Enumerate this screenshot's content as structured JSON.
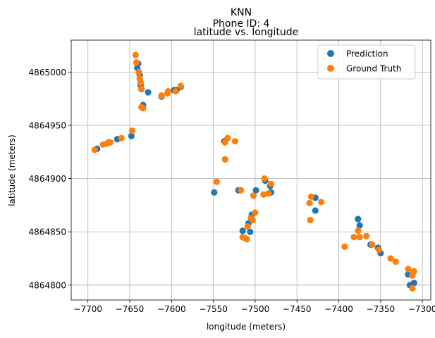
{
  "chart_data": {
    "type": "scatter",
    "suptitle_line1": "KNN",
    "suptitle_line2": "Phone ID: 4",
    "title": "latitude vs. longitude",
    "xlabel": "longitude (meters)",
    "ylabel": "latitude (meters)",
    "xlim": [
      -7720,
      -7290
    ],
    "ylim": [
      4864786,
      4865030
    ],
    "xticks": [
      -7700,
      -7650,
      -7600,
      -7550,
      -7500,
      -7450,
      -7400,
      -7350,
      -7300
    ],
    "xtick_labels": [
      "−7700",
      "−7650",
      "−7600",
      "−7550",
      "−7500",
      "−7450",
      "−7400",
      "−7350",
      "−7300"
    ],
    "yticks": [
      4864800,
      4864850,
      4864900,
      4864950,
      4865000
    ],
    "ytick_labels": [
      "4864800",
      "4864850",
      "4864900",
      "4864950",
      "4865000"
    ],
    "grid": true,
    "legend_position": "top-right",
    "series": [
      {
        "name": "Prediction",
        "color": "#1f77b4",
        "points": [
          [
            -7689,
            4864928
          ],
          [
            -7675,
            4864934
          ],
          [
            -7665,
            4864937
          ],
          [
            -7648,
            4864940
          ],
          [
            -7640,
            4865008
          ],
          [
            -7641,
            4865004
          ],
          [
            -7638,
            4864997
          ],
          [
            -7637,
            4864988
          ],
          [
            -7636,
            4864984
          ],
          [
            -7634,
            4864969
          ],
          [
            -7628,
            4864981
          ],
          [
            -7612,
            4864977
          ],
          [
            -7597,
            4864983
          ],
          [
            -7594,
            4864983
          ],
          [
            -7589,
            4864986
          ],
          [
            -7549,
            4864887
          ],
          [
            -7537,
            4864935
          ],
          [
            -7536,
            4864918
          ],
          [
            -7520,
            4864889
          ],
          [
            -7515,
            4864851
          ],
          [
            -7508,
            4864858
          ],
          [
            -7506,
            4864850
          ],
          [
            -7504,
            4864866
          ],
          [
            -7502,
            4864884
          ],
          [
            -7499,
            4864889
          ],
          [
            -7488,
            4864898
          ],
          [
            -7482,
            4864893
          ],
          [
            -7481,
            4864887
          ],
          [
            -7428,
            4864882
          ],
          [
            -7428,
            4864870
          ],
          [
            -7377,
            4864862
          ],
          [
            -7375,
            4864856
          ],
          [
            -7362,
            4864838
          ],
          [
            -7353,
            4864835
          ],
          [
            -7350,
            4864830
          ],
          [
            -7317,
            4864810
          ],
          [
            -7315,
            4864800
          ],
          [
            -7310,
            4864802
          ]
        ]
      },
      {
        "name": "Ground Truth",
        "color": "#ff7f0e",
        "points": [
          [
            -7692,
            4864927
          ],
          [
            -7682,
            4864932
          ],
          [
            -7677,
            4864933
          ],
          [
            -7673,
            4864934
          ],
          [
            -7660,
            4864938
          ],
          [
            -7647,
            4864945
          ],
          [
            -7643,
            4865016
          ],
          [
            -7642,
            4865009
          ],
          [
            -7639,
            4865000
          ],
          [
            -7638,
            4864994
          ],
          [
            -7637,
            4864990
          ],
          [
            -7636,
            4864984
          ],
          [
            -7636,
            4864967
          ],
          [
            -7634,
            4864966
          ],
          [
            -7612,
            4864978
          ],
          [
            -7605,
            4864980
          ],
          [
            -7604,
            4864982
          ],
          [
            -7595,
            4864982
          ],
          [
            -7589,
            4864987
          ],
          [
            -7546,
            4864897
          ],
          [
            -7536,
            4864934
          ],
          [
            -7533,
            4864938
          ],
          [
            -7536,
            4864918
          ],
          [
            -7524,
            4864935
          ],
          [
            -7517,
            4864889
          ],
          [
            -7515,
            4864845
          ],
          [
            -7512,
            4864844
          ],
          [
            -7510,
            4864843
          ],
          [
            -7509,
            4864855
          ],
          [
            -7505,
            4864863
          ],
          [
            -7503,
            4864861
          ],
          [
            -7502,
            4864884
          ],
          [
            -7500,
            4864868
          ],
          [
            -7490,
            4864885
          ],
          [
            -7489,
            4864900
          ],
          [
            -7484,
            4864886
          ],
          [
            -7481,
            4864895
          ],
          [
            -7435,
            4864877
          ],
          [
            -7433,
            4864883
          ],
          [
            -7434,
            4864861
          ],
          [
            -7421,
            4864878
          ],
          [
            -7393,
            4864836
          ],
          [
            -7382,
            4864845
          ],
          [
            -7377,
            4864851
          ],
          [
            -7375,
            4864845
          ],
          [
            -7367,
            4864846
          ],
          [
            -7360,
            4864838
          ],
          [
            -7352,
            4864833
          ],
          [
            -7338,
            4864825
          ],
          [
            -7332,
            4864822
          ],
          [
            -7317,
            4864815
          ],
          [
            -7312,
            4864809
          ],
          [
            -7310,
            4864813
          ],
          [
            -7312,
            4864797
          ]
        ]
      }
    ]
  }
}
